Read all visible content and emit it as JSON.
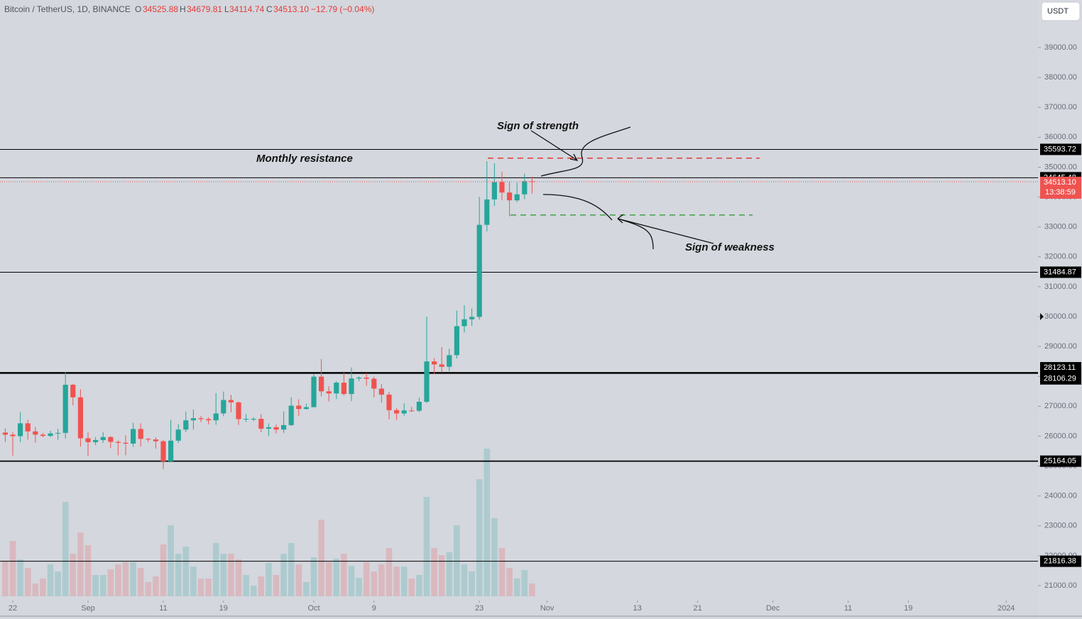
{
  "header": {
    "symbol": "Bitcoin / TetherUS, 1D, BINANCE",
    "o_key": "O",
    "open": "34525.88",
    "h_key": "H",
    "high": "34679.81",
    "l_key": "L",
    "low": "34114.74",
    "c_key": "C",
    "close": "34513.10",
    "change": "−12.79 (−0.04%)",
    "currency": "USDT"
  },
  "chart_data": {
    "type": "candlestick",
    "open": [
      26120,
      26050,
      26000,
      26430,
      26160,
      26050,
      26010,
      26090,
      26110,
      27720,
      27300,
      25930,
      25800,
      25870,
      25970,
      25810,
      25780,
      25750,
      26240,
      25910,
      25890,
      25830,
      25160,
      25850,
      26220,
      26530,
      26600,
      26570,
      26530,
      26760,
      27210,
      27130,
      26570,
      26580,
      26580,
      26250,
      26300,
      26220,
      26370,
      27020,
      26910,
      26970,
      27990,
      27500,
      27430,
      27790,
      27410,
      27930,
      27960,
      27920,
      27590,
      27390,
      26870,
      26760,
      26860,
      26850,
      27150,
      28500,
      28400,
      28320,
      28710,
      29680,
      29910,
      29990,
      33070,
      33920,
      34500,
      34150,
      33890,
      34090,
      34525.88
    ],
    "high": [
      26260,
      26130,
      26800,
      26550,
      26310,
      26110,
      26180,
      26250,
      28140,
      27750,
      27570,
      26130,
      25970,
      26130,
      26000,
      25860,
      26030,
      26450,
      26430,
      25940,
      25960,
      25880,
      26550,
      26400,
      26820,
      26890,
      26680,
      26630,
      27440,
      27490,
      27380,
      27160,
      26740,
      26630,
      26740,
      26430,
      26390,
      26830,
      27300,
      27230,
      27090,
      28070,
      28580,
      27670,
      27840,
      28120,
      28300,
      28000,
      28110,
      27990,
      27740,
      27480,
      26940,
      27100,
      26980,
      27290,
      30000,
      28610,
      28980,
      28920,
      30200,
      30380,
      30270,
      34000,
      35200,
      35130,
      34850,
      34500,
      34480,
      34780,
      34679.81
    ],
    "low": [
      25800,
      25350,
      25800,
      25880,
      25780,
      25960,
      25970,
      25880,
      25920,
      27030,
      25650,
      25330,
      25700,
      25780,
      25600,
      25360,
      25360,
      25640,
      25650,
      25800,
      25580,
      24900,
      25130,
      25770,
      26130,
      26220,
      26470,
      26400,
      26380,
      26670,
      26800,
      26380,
      26470,
      26500,
      26130,
      26000,
      26090,
      26110,
      26340,
      26670,
      26890,
      26970,
      27330,
      27160,
      27240,
      27360,
      27170,
      27840,
      27690,
      27300,
      27120,
      26560,
      26540,
      26680,
      26810,
      26800,
      27110,
      28070,
      28130,
      28170,
      28600,
      29470,
      29690,
      29900,
      32850,
      33700,
      33890,
      33350,
      33830,
      33930,
      34114.74
    ],
    "close": [
      26050,
      26000,
      26430,
      26160,
      26050,
      26010,
      26090,
      26110,
      27720,
      27300,
      25930,
      25800,
      25870,
      25970,
      25810,
      25780,
      25750,
      26240,
      25910,
      25890,
      25830,
      25160,
      25850,
      26220,
      26530,
      26600,
      26570,
      26530,
      26760,
      27210,
      27130,
      26570,
      26580,
      26580,
      26250,
      26300,
      26220,
      26370,
      27020,
      26910,
      26970,
      27990,
      27500,
      27430,
      27790,
      27410,
      27930,
      27960,
      27920,
      27590,
      27390,
      26870,
      26760,
      26860,
      26850,
      27150,
      28500,
      28400,
      28320,
      28710,
      29680,
      29910,
      29990,
      33070,
      33920,
      34500,
      34150,
      33890,
      34090,
      34530,
      34513.1
    ],
    "volume": [
      50,
      78,
      52,
      40,
      18,
      25,
      45,
      35,
      133,
      60,
      90,
      72,
      30,
      30,
      38,
      45,
      48,
      48,
      40,
      20,
      28,
      73,
      100,
      60,
      70,
      42,
      25,
      25,
      75,
      60,
      60,
      52,
      30,
      15,
      28,
      47,
      30,
      60,
      75,
      45,
      20,
      55,
      108,
      48,
      53,
      60,
      43,
      26,
      48,
      35,
      45,
      68,
      42,
      42,
      25,
      30,
      140,
      68,
      58,
      62,
      100,
      45,
      35,
      165,
      208,
      110,
      68,
      40,
      25,
      37,
      18
    ],
    "up_color": "#26a69a",
    "down_color": "#ef5350",
    "ylim": [
      20250,
      40000
    ],
    "yticks": [
      {
        "value": 21000,
        "label": "21000.00"
      },
      {
        "value": 22000,
        "label": "22000.00"
      },
      {
        "value": 23000,
        "label": "23000.00"
      },
      {
        "value": 24000,
        "label": "24000.00"
      },
      {
        "value": 25000,
        "label": "25000.00"
      },
      {
        "value": 26000,
        "label": "26000.00"
      },
      {
        "value": 27000,
        "label": "27000.00"
      },
      {
        "value": 28000,
        "label": "28000.00"
      },
      {
        "value": 29000,
        "label": "29000.00"
      },
      {
        "value": 30000,
        "label": "30000.00"
      },
      {
        "value": 31000,
        "label": "31000.00"
      },
      {
        "value": 32000,
        "label": "32000.00"
      },
      {
        "value": 33000,
        "label": "33000.00"
      },
      {
        "value": 34000,
        "label": "34000.00"
      },
      {
        "value": 35000,
        "label": "35000.00"
      },
      {
        "value": 36000,
        "label": "36000.00"
      },
      {
        "value": 37000,
        "label": "37000.00"
      },
      {
        "value": 38000,
        "label": "38000.00"
      },
      {
        "value": 39000,
        "label": "39000.00"
      }
    ],
    "xticks": [
      {
        "value": 1,
        "label": "22"
      },
      {
        "value": 11,
        "label": "Sep"
      },
      {
        "value": 21,
        "label": "11"
      },
      {
        "value": 29,
        "label": "19"
      },
      {
        "value": 41,
        "label": "Oct"
      },
      {
        "value": 49,
        "label": "9"
      },
      {
        "value": 63,
        "label": "23"
      },
      {
        "value": 72,
        "label": "Nov"
      },
      {
        "value": 84,
        "label": "13"
      },
      {
        "value": 92,
        "label": "21"
      },
      {
        "value": 102,
        "label": "Dec"
      },
      {
        "value": 112,
        "label": "11"
      },
      {
        "value": 120,
        "label": "19"
      },
      {
        "value": 133,
        "label": "2024"
      }
    ],
    "levels": [
      35593.72,
      34645.48,
      31484.87,
      28123.11,
      28106.29,
      25164.05,
      21816.38
    ],
    "last_price": {
      "value": 34513.1,
      "label": "34513.10"
    },
    "countdown": "13:38:59",
    "zones": [
      {
        "value": 35300,
        "color": "#e53935"
      },
      {
        "value": 33400,
        "color": "#43a047"
      }
    ],
    "annotations": [
      "Monthly resistance",
      "Sign of strength",
      "Sign of weakness"
    ]
  }
}
